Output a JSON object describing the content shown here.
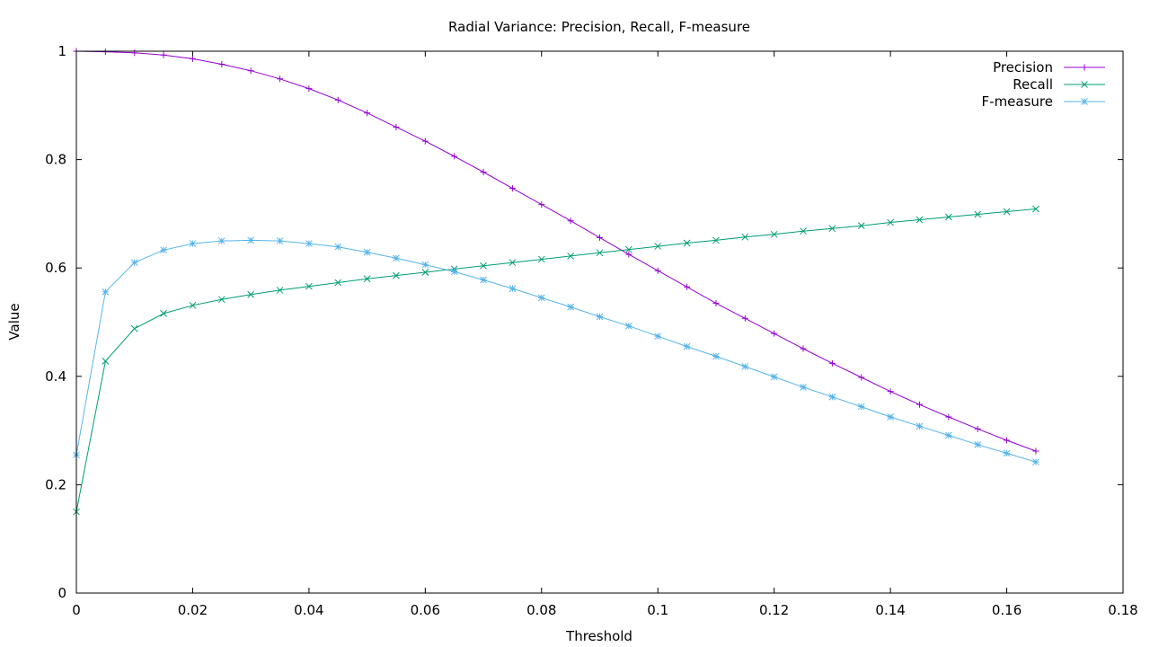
{
  "chart_data": {
    "type": "line",
    "title": "Radial Variance: Precision, Recall, F-measure",
    "xlabel": "Threshold",
    "ylabel": "Value",
    "xlim": [
      0,
      0.18
    ],
    "ylim": [
      0,
      1
    ],
    "xticks": [
      0,
      0.02,
      0.04,
      0.06,
      0.08,
      0.1,
      0.12,
      0.14,
      0.16,
      0.18
    ],
    "xtick_labels": [
      "0",
      "0.02",
      "0.04",
      "0.06",
      "0.08",
      "0.1",
      "0.12",
      "0.14",
      "0.16",
      "0.18"
    ],
    "yticks": [
      0,
      0.2,
      0.4,
      0.6,
      0.8,
      1
    ],
    "ytick_labels": [
      "0",
      "0.2",
      "0.4",
      "0.6",
      "0.8",
      "1"
    ],
    "grid": false,
    "legend": "top-right",
    "x": [
      0,
      0.005,
      0.01,
      0.015,
      0.02,
      0.025,
      0.03,
      0.035,
      0.04,
      0.045,
      0.05,
      0.055,
      0.06,
      0.065,
      0.07,
      0.075,
      0.08,
      0.085,
      0.09,
      0.095,
      0.1,
      0.105,
      0.11,
      0.115,
      0.12,
      0.125,
      0.13,
      0.135,
      0.14,
      0.145,
      0.15,
      0.155,
      0.16,
      0.165
    ],
    "series": [
      {
        "name": "Precision",
        "color": "#9400d3",
        "marker": "plus",
        "values": [
          1.0,
          0.999,
          0.997,
          0.993,
          0.986,
          0.976,
          0.964,
          0.949,
          0.931,
          0.91,
          0.886,
          0.86,
          0.834,
          0.806,
          0.777,
          0.747,
          0.717,
          0.687,
          0.656,
          0.625,
          0.595,
          0.565,
          0.535,
          0.507,
          0.479,
          0.451,
          0.424,
          0.398,
          0.372,
          0.348,
          0.325,
          0.303,
          0.282,
          0.262
        ]
      },
      {
        "name": "Recall",
        "color": "#009e73",
        "marker": "cross",
        "values": [
          0.15,
          0.428,
          0.488,
          0.516,
          0.531,
          0.542,
          0.551,
          0.559,
          0.566,
          0.573,
          0.58,
          0.586,
          0.592,
          0.598,
          0.604,
          0.61,
          0.616,
          0.622,
          0.628,
          0.634,
          0.64,
          0.646,
          0.651,
          0.657,
          0.662,
          0.668,
          0.673,
          0.678,
          0.684,
          0.689,
          0.694,
          0.699,
          0.704,
          0.709
        ]
      },
      {
        "name": "F-measure",
        "color": "#56b4e9",
        "marker": "star",
        "values": [
          0.255,
          0.556,
          0.61,
          0.633,
          0.645,
          0.65,
          0.651,
          0.65,
          0.645,
          0.639,
          0.629,
          0.618,
          0.606,
          0.593,
          0.578,
          0.562,
          0.545,
          0.528,
          0.51,
          0.493,
          0.474,
          0.455,
          0.437,
          0.418,
          0.399,
          0.38,
          0.362,
          0.344,
          0.325,
          0.308,
          0.291,
          0.274,
          0.258,
          0.242
        ]
      }
    ]
  }
}
